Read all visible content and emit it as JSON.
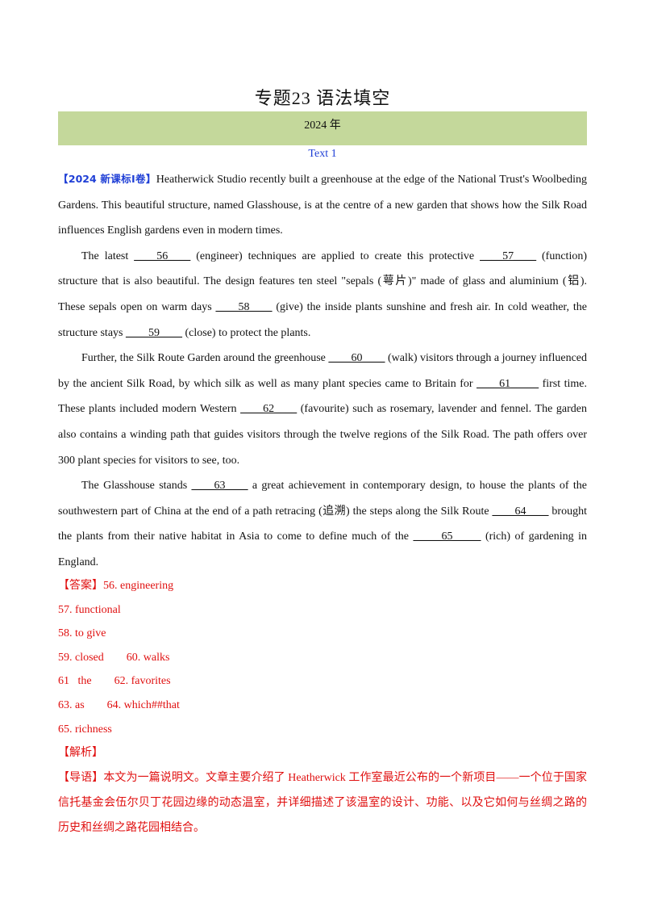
{
  "title": "专题23 语法填空",
  "year": "2024 年",
  "text_label": "Text 1",
  "passage": {
    "tag": "【2024 新课标Ⅰ卷】",
    "p1": "Heatherwick Studio recently built a greenhouse at the edge of the National Trust's Woolbeding Gardens. This beautiful structure, named Glasshouse, is at the centre of a new garden that shows how the Silk Road influences English gardens even in modern times.",
    "p2": {
      "a": "The latest ",
      "b56": "____56____",
      "c": " (engineer) techniques are applied to create this protective ",
      "b57": "____57____",
      "d": " (function) structure that is also beautiful. The design features ten steel \"sepals (萼片)\" made of glass and aluminium (铝). These sepals open on warm days ",
      "b58": "____58____",
      "e": " (give) the inside plants sunshine and fresh air. In cold weather, the structure stays ",
      "b59": "____59____",
      "f": " (close) to protect the plants."
    },
    "p3": {
      "a": "Further, the Silk Route Garden around the greenhouse ",
      "b60": "____60____",
      "b": " (walk) visitors through a journey influenced by the ancient Silk Road, by which silk as well as many plant species came to Britain for ",
      "b61": "____61_____",
      "c": " first time. These plants included modern Western ",
      "b62": "____62____",
      "d": " (favourite) such as rosemary, lavender and fennel. The garden also contains a winding path that guides visitors through the twelve regions of the Silk Road. The path offers over 300 plant species for visitors to see, too."
    },
    "p4": {
      "a": "The Glasshouse stands ",
      "b63": "____63____",
      "b": " a great achievement in contemporary design, to house the plants of the southwestern part of China at the end of a path retracing (追溯) the steps along the Silk Route ",
      "b64": "____64____",
      "c": " brought the plants from their native habitat in Asia to come to define much of the ",
      "b65": "_____65_____",
      "d": " (rich) of gardening in England."
    }
  },
  "answers": {
    "line1": "【答案】56. engineering",
    "line2": "57. functional",
    "line3": "58. to give",
    "line4": "59. closed        60. walks",
    "line5": "61   the        62. favorites",
    "line6": "63. as        64. which##that",
    "line7": "65. richness",
    "line8": "【解析】"
  },
  "guide": "【导语】本文为一篇说明文。文章主要介绍了 Heatherwick 工作室最近公布的一个新项目——一个位于国家信托基金会伍尔贝丁花园边缘的动态温室，并详细描述了该温室的设计、功能、以及它如何与丝绸之路的历史和丝绸之路花园相结合。"
}
